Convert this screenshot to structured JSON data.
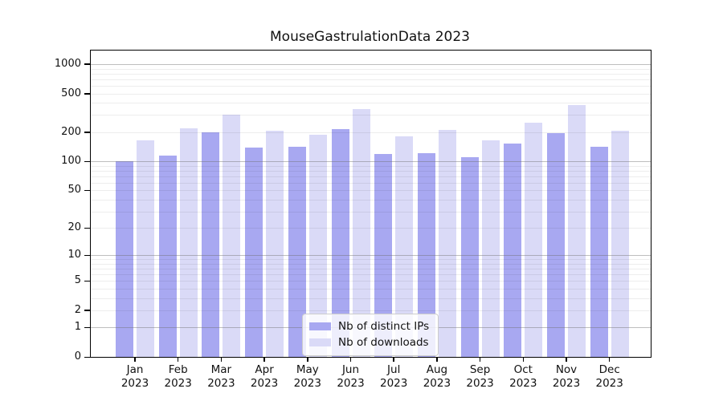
{
  "chart_data": {
    "type": "bar",
    "title": "MouseGastrulationData 2023",
    "months": [
      "Jan",
      "Feb",
      "Mar",
      "Apr",
      "May",
      "Jun",
      "Jul",
      "Aug",
      "Sep",
      "Oct",
      "Nov",
      "Dec"
    ],
    "year": "2023",
    "series": [
      {
        "name": "Nb of distinct IPs",
        "color": "#a8a8f1",
        "values": [
          100,
          114,
          201,
          138,
          141,
          215,
          120,
          122,
          110,
          152,
          196,
          142
        ]
      },
      {
        "name": "Nb of downloads",
        "color": "#dadaf7",
        "values": [
          165,
          218,
          300,
          206,
          188,
          347,
          181,
          210,
          165,
          250,
          380,
          208
        ]
      }
    ],
    "yscale": "log1p",
    "ylim": [
      0,
      1100
    ],
    "yticks": [
      0,
      1,
      2,
      5,
      10,
      20,
      50,
      100,
      200,
      500,
      1000
    ],
    "grid_major": [
      1,
      10,
      100,
      1000
    ],
    "grid_minor": [
      2,
      3,
      4,
      5,
      6,
      7,
      8,
      9,
      20,
      30,
      40,
      50,
      60,
      70,
      80,
      90,
      200,
      300,
      400,
      500,
      600,
      700,
      800,
      900
    ],
    "legend_position": "lower center",
    "background_color": "#ffffff",
    "text_color": "#111111"
  }
}
